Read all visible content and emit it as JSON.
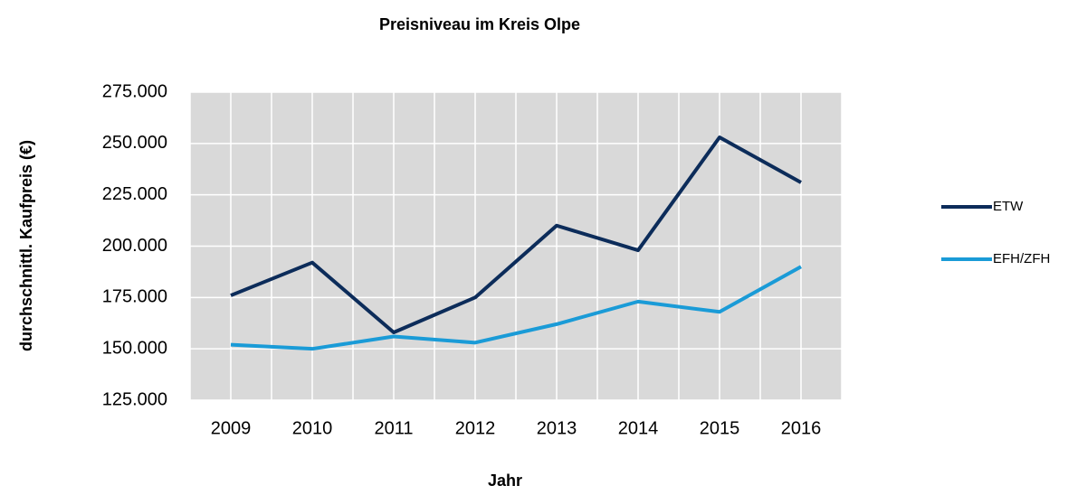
{
  "chart_data": {
    "type": "line",
    "title": "Preisniveau im Kreis Olpe",
    "x_label": "Jahr",
    "y_label": "durchschnittl. Kaufpreis (€)",
    "categories": [
      "2009",
      "2010",
      "2011",
      "2012",
      "2013",
      "2014",
      "2015",
      "2016"
    ],
    "series": [
      {
        "name": "ETW",
        "color": "#0c2c5a",
        "values": [
          176000,
          192000,
          158000,
          175000,
          210000,
          198000,
          253000,
          231000
        ]
      },
      {
        "name": "EFH/ZFH",
        "color": "#1a9bd7",
        "values": [
          152000,
          150000,
          156000,
          153000,
          162000,
          173000,
          168000,
          190000
        ]
      }
    ],
    "ylim": [
      125000,
      275000
    ],
    "yticks": [
      {
        "value": 125000,
        "label": "125.000"
      },
      {
        "value": 150000,
        "label": "150.000"
      },
      {
        "value": 175000,
        "label": "175.000"
      },
      {
        "value": 200000,
        "label": "200.000"
      },
      {
        "value": 225000,
        "label": "225.000"
      },
      {
        "value": 250000,
        "label": "250.000"
      },
      {
        "value": 275000,
        "label": "275.000"
      }
    ],
    "grid": true,
    "legend": "right"
  }
}
